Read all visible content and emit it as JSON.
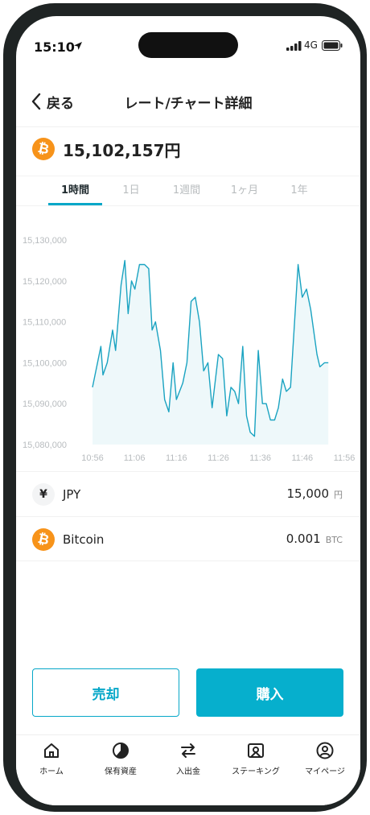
{
  "status_bar": {
    "time": "15:10",
    "network": "4G"
  },
  "header": {
    "back_label": "戻る",
    "title": "レート/チャート詳細"
  },
  "price": {
    "value": "15,102,157円",
    "coin_symbol": "₿"
  },
  "tabs": [
    {
      "label": "1時間",
      "active": true
    },
    {
      "label": "1日"
    },
    {
      "label": "1週間"
    },
    {
      "label": "1ヶ月"
    },
    {
      "label": "1年"
    }
  ],
  "chart_data": {
    "type": "area",
    "y_tick_labels": [
      "15,130,000",
      "15,120,000",
      "15,110,000",
      "15,100,000",
      "15,090,000",
      "15,080,000"
    ],
    "ylim": [
      15080000,
      15130000
    ],
    "x_tick_labels": [
      "10:56",
      "11:06",
      "11:16",
      "11:26",
      "11:36",
      "11:46",
      "11:56"
    ],
    "x_range_minutes": [
      0,
      60
    ],
    "color": "#1aa3c1",
    "fill_color": "#eef8fa",
    "series": [
      {
        "values": [
          [
            0,
            15094000
          ],
          [
            1,
            15099000
          ],
          [
            2,
            15104000
          ],
          [
            2.5,
            15097000
          ],
          [
            3.5,
            15100000
          ],
          [
            4.8,
            15108000
          ],
          [
            5.5,
            15103000
          ],
          [
            6.8,
            15119000
          ],
          [
            7.7,
            15125000
          ],
          [
            8.5,
            15112000
          ],
          [
            9.3,
            15120000
          ],
          [
            10.1,
            15118000
          ],
          [
            11.2,
            15124000
          ],
          [
            12.4,
            15124000
          ],
          [
            13.4,
            15123000
          ],
          [
            14.2,
            15108000
          ],
          [
            15,
            15110000
          ],
          [
            16.2,
            15103000
          ],
          [
            17.2,
            15091000
          ],
          [
            18.2,
            15088000
          ],
          [
            19.2,
            15100000
          ],
          [
            20,
            15091000
          ],
          [
            21.5,
            15095000
          ],
          [
            22.5,
            15100000
          ],
          [
            23.5,
            15115000
          ],
          [
            24.5,
            15116000
          ],
          [
            25.5,
            15110000
          ],
          [
            26.5,
            15098000
          ],
          [
            27.5,
            15100000
          ],
          [
            28.5,
            15089000
          ],
          [
            30,
            15102000
          ],
          [
            31,
            15101000
          ],
          [
            32,
            15087000
          ],
          [
            33,
            15094000
          ],
          [
            33.9,
            15093000
          ],
          [
            34.8,
            15090000
          ],
          [
            35.8,
            15104000
          ],
          [
            36.7,
            15087000
          ],
          [
            37.6,
            15083000
          ],
          [
            38.6,
            15082000
          ],
          [
            39.5,
            15103000
          ],
          [
            40.5,
            15090000
          ],
          [
            41.4,
            15090000
          ],
          [
            42.4,
            15086000
          ],
          [
            43.4,
            15086000
          ],
          [
            44.3,
            15089000
          ],
          [
            45.3,
            15096000
          ],
          [
            46.2,
            15093000
          ],
          [
            47.2,
            15094000
          ],
          [
            49,
            15124000
          ],
          [
            50,
            15116000
          ],
          [
            51,
            15118000
          ],
          [
            52,
            15113000
          ],
          [
            53.5,
            15102000
          ],
          [
            54.2,
            15099000
          ],
          [
            55.3,
            15100000
          ],
          [
            56.2,
            15100000
          ]
        ]
      }
    ]
  },
  "assets": [
    {
      "icon": "¥",
      "name": "JPY",
      "amount": "15,000",
      "unit": "円"
    },
    {
      "icon": "₿",
      "name": "Bitcoin",
      "amount": "0.001",
      "unit": "BTC"
    }
  ],
  "actions": {
    "sell_label": "売却",
    "buy_label": "購入"
  },
  "bottom_nav": [
    {
      "label": "ホーム",
      "icon": "home-icon"
    },
    {
      "label": "保有資産",
      "icon": "pie-chart-icon"
    },
    {
      "label": "入出金",
      "icon": "transfer-icon"
    },
    {
      "label": "ステーキング",
      "icon": "staking-icon"
    },
    {
      "label": "マイページ",
      "icon": "user-icon"
    }
  ]
}
